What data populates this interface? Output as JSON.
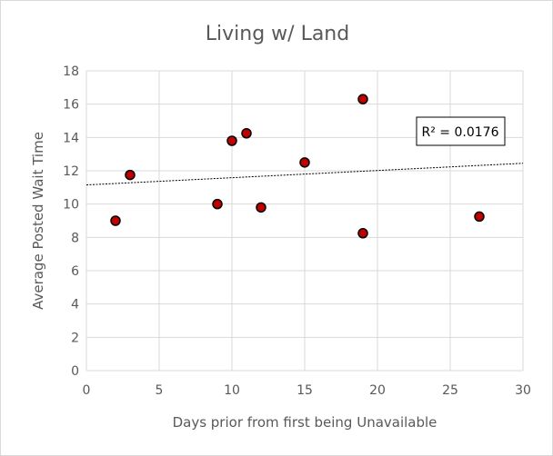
{
  "chart_data": {
    "type": "scatter",
    "title": "Living w/ Land",
    "xlabel": "Days prior from first being Unavailable",
    "ylabel": "Average Posted Wait Time",
    "xlim": [
      0,
      30
    ],
    "ylim": [
      0,
      18
    ],
    "xticks": [
      0,
      5,
      10,
      15,
      20,
      25,
      30
    ],
    "yticks": [
      0,
      2,
      4,
      6,
      8,
      10,
      12,
      14,
      16,
      18
    ],
    "grid": true,
    "series": [
      {
        "points": [
          {
            "x": 2,
            "y": 9.0
          },
          {
            "x": 3,
            "y": 11.75
          },
          {
            "x": 9,
            "y": 10.0
          },
          {
            "x": 10,
            "y": 13.8
          },
          {
            "x": 11,
            "y": 14.25
          },
          {
            "x": 12,
            "y": 9.8
          },
          {
            "x": 15,
            "y": 12.5
          },
          {
            "x": 19,
            "y": 16.3
          },
          {
            "x": 19,
            "y": 8.25
          },
          {
            "x": 27,
            "y": 9.25
          }
        ],
        "marker_color": "#c00000",
        "marker_edge": "#000000"
      }
    ],
    "trendline": {
      "type": "linear",
      "start": {
        "x": 0,
        "y": 11.15
      },
      "end": {
        "x": 30,
        "y": 12.45
      },
      "label": "R² = 0.0176"
    }
  }
}
